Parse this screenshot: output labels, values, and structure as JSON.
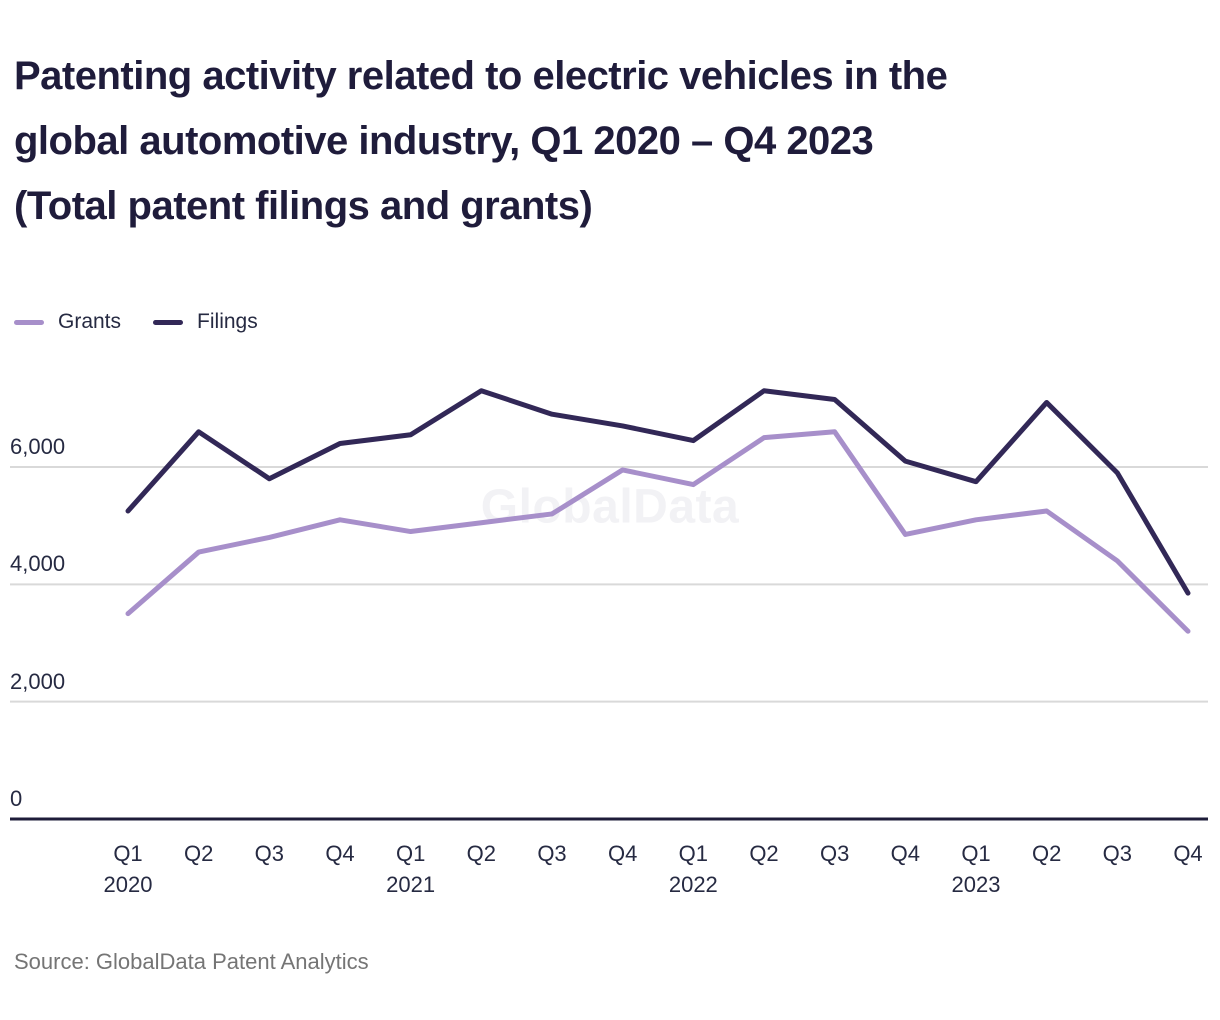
{
  "title_lines": [
    "Patenting activity related to electric vehicles in the",
    "global automotive industry, Q1 2020 – Q4 2023",
    "(Total patent filings and grants)"
  ],
  "legend": [
    {
      "label": "Grants",
      "color": "#a78fca"
    },
    {
      "label": "Filings",
      "color": "#322857"
    }
  ],
  "watermark": "GlobalData",
  "source": "Source: GlobalData Patent Analytics",
  "colors": {
    "title": "#1f1c3b",
    "axis_text": "#262a42",
    "grid": "#d9d9d9",
    "axis": "#1e1c39",
    "grants": "#a78fca",
    "filings": "#322857",
    "source_text": "#757575",
    "watermark": "#f2f2f5",
    "background": "#ffffff"
  },
  "chart_data": {
    "type": "line",
    "title": "Patenting activity related to electric vehicles in the global automotive industry, Q1 2020 – Q4 2023 (Total patent filings and grants)",
    "categories": [
      "Q1 2020",
      "Q2 2020",
      "Q3 2020",
      "Q4 2020",
      "Q1 2021",
      "Q2 2021",
      "Q3 2021",
      "Q4 2021",
      "Q1 2022",
      "Q2 2022",
      "Q3 2022",
      "Q4 2022",
      "Q1 2023",
      "Q2 2023",
      "Q3 2023",
      "Q4 2023"
    ],
    "x_quarter_labels": [
      "Q1",
      "Q2",
      "Q3",
      "Q4",
      "Q1",
      "Q2",
      "Q3",
      "Q4",
      "Q1",
      "Q2",
      "Q3",
      "Q4",
      "Q1",
      "Q2",
      "Q3",
      "Q4"
    ],
    "x_year_labels": [
      {
        "index": 0,
        "label": "2020"
      },
      {
        "index": 4,
        "label": "2021"
      },
      {
        "index": 8,
        "label": "2022"
      },
      {
        "index": 12,
        "label": "2023"
      }
    ],
    "series": [
      {
        "name": "Grants",
        "color": "#a78fca",
        "values": [
          3500,
          4550,
          4800,
          5100,
          4900,
          5050,
          5200,
          5950,
          5700,
          6500,
          6600,
          4850,
          5100,
          5250,
          4400,
          3200
        ]
      },
      {
        "name": "Filings",
        "color": "#322857",
        "values": [
          5250,
          6600,
          5800,
          6400,
          6550,
          7300,
          6900,
          6700,
          6450,
          7300,
          7150,
          6100,
          5750,
          7100,
          5900,
          3850
        ]
      }
    ],
    "y_ticks": [
      0,
      2000,
      4000,
      6000
    ],
    "y_tick_labels": [
      "0",
      "2,000",
      "4,000",
      "6,000"
    ],
    "ylim": [
      0,
      7800
    ],
    "xlabel": "",
    "ylabel": "",
    "grid": "horizontal",
    "legend_position": "top-left"
  }
}
